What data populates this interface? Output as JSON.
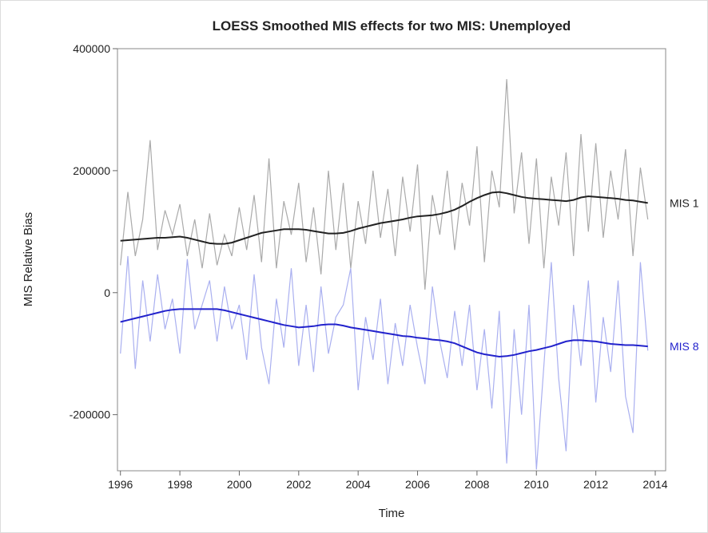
{
  "chart_data": {
    "type": "line",
    "title": "LOESS Smoothed MIS effects for two MIS: Unemployed",
    "x_label": "Time",
    "y_label": "MIS Relative Bias",
    "xlim": [
      1995.9,
      2014.35
    ],
    "ylim": [
      -292000,
      400000
    ],
    "xticks": [
      1996,
      1998,
      2000,
      2002,
      2004,
      2006,
      2008,
      2010,
      2012,
      2014
    ],
    "yticks": [
      -200000,
      0,
      200000,
      400000
    ],
    "x": [
      1996,
      1996.25,
      1996.5,
      1996.75,
      1997,
      1997.25,
      1997.5,
      1997.75,
      1998,
      1998.25,
      1998.5,
      1998.75,
      1999,
      1999.25,
      1999.5,
      1999.75,
      2000,
      2000.25,
      2000.5,
      2000.75,
      2001,
      2001.25,
      2001.5,
      2001.75,
      2002,
      2002.25,
      2002.5,
      2002.75,
      2003,
      2003.25,
      2003.5,
      2003.75,
      2004,
      2004.25,
      2004.5,
      2004.75,
      2005,
      2005.25,
      2005.5,
      2005.75,
      2006,
      2006.25,
      2006.5,
      2006.75,
      2007,
      2007.25,
      2007.5,
      2007.75,
      2008,
      2008.25,
      2008.5,
      2008.75,
      2009,
      2009.25,
      2009.5,
      2009.75,
      2010,
      2010.25,
      2010.5,
      2010.75,
      2011,
      2011.25,
      2011.5,
      2011.75,
      2012,
      2012.25,
      2012.5,
      2012.75,
      2013,
      2013.25,
      2013.5,
      2013.75
    ],
    "series": [
      {
        "color": "#aaaaaa",
        "width": 1.2,
        "values": [
          45000,
          165000,
          60000,
          120000,
          250000,
          70000,
          135000,
          95000,
          145000,
          60000,
          120000,
          40000,
          130000,
          45000,
          95000,
          60000,
          140000,
          70000,
          160000,
          50000,
          220000,
          40000,
          150000,
          95000,
          180000,
          50000,
          140000,
          30000,
          200000,
          70000,
          180000,
          40000,
          150000,
          80000,
          200000,
          90000,
          170000,
          60000,
          190000,
          100000,
          210000,
          5000,
          160000,
          95000,
          200000,
          70000,
          180000,
          110000,
          240000,
          50000,
          200000,
          140000,
          350000,
          130000,
          230000,
          80000,
          220000,
          40000,
          190000,
          110000,
          230000,
          60000,
          260000,
          100000,
          245000,
          90000,
          200000,
          120000,
          235000,
          60000,
          205000,
          120000
        ]
      },
      {
        "color": "#aab0f0",
        "width": 1.2,
        "values": [
          -100000,
          60000,
          -125000,
          20000,
          -80000,
          30000,
          -60000,
          -10000,
          -100000,
          55000,
          -60000,
          -20000,
          20000,
          -80000,
          10000,
          -60000,
          -20000,
          -110000,
          30000,
          -90000,
          -150000,
          -10000,
          -90000,
          40000,
          -120000,
          -20000,
          -130000,
          10000,
          -100000,
          -40000,
          -20000,
          40000,
          -160000,
          -40000,
          -110000,
          -10000,
          -150000,
          -50000,
          -120000,
          -20000,
          -90000,
          -150000,
          10000,
          -80000,
          -140000,
          -30000,
          -120000,
          -20000,
          -160000,
          -60000,
          -190000,
          -30000,
          -280000,
          -60000,
          -200000,
          -20000,
          -290000,
          -120000,
          50000,
          -140000,
          -260000,
          -20000,
          -120000,
          20000,
          -180000,
          -40000,
          -130000,
          20000,
          -170000,
          -230000,
          50000,
          -95000
        ]
      },
      {
        "name": "MIS 1",
        "color": "#222222",
        "width": 2,
        "values": [
          85000,
          86000,
          87000,
          88000,
          89000,
          90000,
          90000,
          91000,
          92000,
          90000,
          87000,
          84000,
          81000,
          80000,
          80000,
          82000,
          86000,
          90000,
          94000,
          98000,
          100000,
          102000,
          104000,
          104000,
          104000,
          103000,
          101000,
          99000,
          97000,
          97000,
          98000,
          101000,
          105000,
          108000,
          111000,
          114000,
          116000,
          118000,
          120000,
          123000,
          125000,
          126000,
          127000,
          129000,
          132000,
          136000,
          142000,
          149000,
          155000,
          160000,
          164000,
          165000,
          163000,
          160000,
          157000,
          155000,
          154000,
          153000,
          152000,
          151000,
          150000,
          152000,
          156000,
          158000,
          157000,
          156000,
          155000,
          154000,
          152000,
          151000,
          149000,
          147000
        ]
      },
      {
        "name": "MIS 8",
        "color": "#2222cc",
        "width": 2,
        "values": [
          -48000,
          -45000,
          -42000,
          -39000,
          -36000,
          -33000,
          -30000,
          -28000,
          -27000,
          -27000,
          -27000,
          -27000,
          -27000,
          -27000,
          -29000,
          -32000,
          -35000,
          -38000,
          -41000,
          -44000,
          -47000,
          -50000,
          -53000,
          -55000,
          -57000,
          -56000,
          -55000,
          -53000,
          -52000,
          -52000,
          -54000,
          -57000,
          -59000,
          -61000,
          -63000,
          -65000,
          -67000,
          -69000,
          -71000,
          -72000,
          -74000,
          -75000,
          -77000,
          -78000,
          -80000,
          -83000,
          -88000,
          -93000,
          -98000,
          -101000,
          -103000,
          -105000,
          -104000,
          -102000,
          -99000,
          -96000,
          -94000,
          -91000,
          -88000,
          -84000,
          -80000,
          -78000,
          -78000,
          -79000,
          -80000,
          -82000,
          -84000,
          -85000,
          -86000,
          -86000,
          -87000,
          -88000
        ]
      }
    ]
  }
}
